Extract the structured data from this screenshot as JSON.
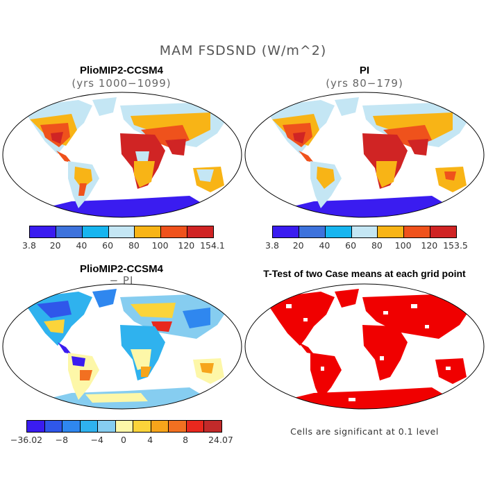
{
  "figure": {
    "title": "MAM FSDSND (W/m^2)"
  },
  "panels": [
    {
      "title": "PlioMIP2-CCSM4",
      "subtitle": "(yrs 1000−1099)",
      "colorbar": {
        "colors": [
          "#3a1cf0",
          "#3d72dc",
          "#17b5ef",
          "#c4e6f4",
          "#f8b416",
          "#ef521c",
          "#d02424"
        ],
        "labels": [
          "3.8",
          "20",
          "40",
          "60",
          "80",
          "100",
          "120",
          "154.1"
        ]
      }
    },
    {
      "title": "PI",
      "subtitle": "(yrs 80−179)",
      "colorbar": {
        "colors": [
          "#3a1cf0",
          "#3d72dc",
          "#17b5ef",
          "#c4e6f4",
          "#f8b416",
          "#ef521c",
          "#d02424"
        ],
        "labels": [
          "3.8",
          "20",
          "40",
          "60",
          "80",
          "100",
          "120",
          "153.5"
        ]
      }
    },
    {
      "title": "PlioMIP2-CCSM4",
      "subtitle": "− PI",
      "colorbar": {
        "colors": [
          "#3a1cf0",
          "#2f57ea",
          "#2f87ef",
          "#2fb2ee",
          "#86cdf0",
          "#fdf7a8",
          "#fbd43a",
          "#f6a51b",
          "#f27021",
          "#e8281e",
          "#c22a2a"
        ],
        "labels": [
          "−36.02",
          "−8",
          "−4",
          "0",
          "4",
          "8",
          "24.07"
        ]
      }
    },
    {
      "title": "T-Test of two Case means at each grid point",
      "note": "Cells are significant at 0.1 level"
    }
  ],
  "colors": {
    "land_fill_ttest": "#f00000",
    "ocean": "#ffffff"
  }
}
